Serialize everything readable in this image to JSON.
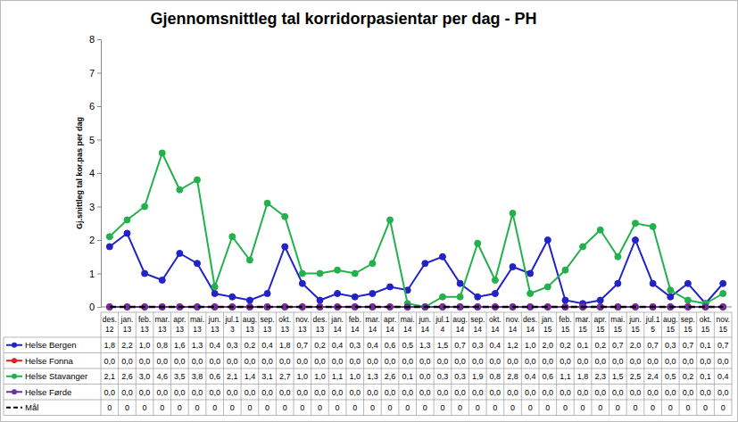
{
  "chart_data": {
    "type": "line",
    "title": "Gjennomsnittleg tal korridorpasientar per dag - PH",
    "y_label": "Gj.snittleg tal kor.pas per dag",
    "categories": [
      "des. 12",
      "jan. 13",
      "feb. 13",
      "mar. 13",
      "apr. 13",
      "mai. 13",
      "jun. 13",
      "jul.13",
      "aug. 13",
      "sep. 13",
      "okt. 13",
      "nov. 13",
      "des. 13",
      "jan. 14",
      "feb. 14",
      "mar. 14",
      "apr. 14",
      "mai. 14",
      "jun. 14",
      "jul.14",
      "aug. 14",
      "sep. 14",
      "okt. 14",
      "nov. 14",
      "des. 14",
      "jan. 15",
      "feb. 15",
      "mar. 15",
      "apr. 15",
      "mai. 15",
      "jun. 15",
      "jul.15",
      "aug. 15",
      "sep. 15",
      "okt. 15",
      "nov. 15"
    ],
    "ylim": [
      0,
      8
    ],
    "yticks": [
      0,
      1,
      2,
      3,
      4,
      5,
      6,
      7,
      8
    ],
    "grid": false,
    "series": [
      {
        "name": "Helse Bergen",
        "color": "#2222c8",
        "marker": "circle",
        "line_style": "solid",
        "values": [
          1.8,
          2.2,
          1.0,
          0.8,
          1.6,
          1.3,
          0.4,
          0.3,
          0.2,
          0.4,
          1.8,
          0.7,
          0.2,
          0.4,
          0.3,
          0.4,
          0.6,
          0.5,
          1.3,
          1.5,
          0.7,
          0.3,
          0.4,
          1.2,
          1.0,
          2.0,
          0.2,
          0.1,
          0.2,
          0.7,
          2.0,
          0.7,
          0.3,
          0.7,
          0.1,
          0.7
        ],
        "value_labels": [
          "1,8",
          "2,2",
          "1,0",
          "0,8",
          "1,6",
          "1,3",
          "0,4",
          "0,3",
          "0,2",
          "0,4",
          "1,8",
          "0,7",
          "0,2",
          "0,4",
          "0,3",
          "0,4",
          "0,6",
          "0,5",
          "1,3",
          "1,5",
          "0,7",
          "0,3",
          "0,4",
          "1,2",
          "1,0",
          "2,0",
          "0,2",
          "0,1",
          "0,2",
          "0,7",
          "2,0",
          "0,7",
          "0,3",
          "0,7",
          "0,1",
          "0,7"
        ]
      },
      {
        "name": "Helse Fonna",
        "color": "#e02020",
        "marker": "circle",
        "line_style": "solid",
        "values": [
          0,
          0,
          0,
          0,
          0,
          0,
          0,
          0,
          0,
          0,
          0,
          0,
          0,
          0,
          0,
          0,
          0,
          0,
          0,
          0,
          0,
          0,
          0,
          0,
          0,
          0,
          0,
          0,
          0,
          0,
          0,
          0,
          0,
          0,
          0,
          0
        ],
        "value_labels": [
          "0,0",
          "0,0",
          "0,0",
          "0,0",
          "0,0",
          "0,0",
          "0,0",
          "0,0",
          "0,0",
          "0,0",
          "0,0",
          "0,0",
          "0,0",
          "0,0",
          "0,0",
          "0,0",
          "0,0",
          "0,0",
          "0,0",
          "0,0",
          "0,0",
          "0,0",
          "0,0",
          "0,0",
          "0,0",
          "0,0",
          "0,0",
          "0,0",
          "0,0",
          "0,0",
          "0,0",
          "0,0",
          "0,0",
          "0,0",
          "0,0",
          "0,0"
        ]
      },
      {
        "name": "Helse Stavanger",
        "color": "#22b14c",
        "marker": "circle",
        "line_style": "solid",
        "values": [
          2.1,
          2.6,
          3.0,
          4.6,
          3.5,
          3.8,
          0.6,
          2.1,
          1.4,
          3.1,
          2.7,
          1.0,
          1.0,
          1.1,
          1.0,
          1.3,
          2.6,
          0.1,
          0.0,
          0.3,
          0.3,
          1.9,
          0.8,
          2.8,
          0.4,
          0.6,
          1.1,
          1.8,
          2.3,
          1.5,
          2.5,
          2.4,
          0.5,
          0.2,
          0.1,
          0.4
        ],
        "value_labels": [
          "2,1",
          "2,6",
          "3,0",
          "4,6",
          "3,5",
          "3,8",
          "0,6",
          "2,1",
          "1,4",
          "3,1",
          "2,7",
          "1,0",
          "1,0",
          "1,1",
          "1,0",
          "1,3",
          "2,6",
          "0,1",
          "0,0",
          "0,3",
          "0,3",
          "1,9",
          "0,8",
          "2,8",
          "0,4",
          "0,6",
          "1,1",
          "1,8",
          "2,3",
          "1,5",
          "2,5",
          "2,4",
          "0,5",
          "0,2",
          "0,1",
          "0,4"
        ]
      },
      {
        "name": "Helse Førde",
        "color": "#7030a0",
        "marker": "circle",
        "line_style": "solid",
        "values": [
          0,
          0,
          0,
          0,
          0,
          0,
          0,
          0,
          0,
          0,
          0,
          0,
          0,
          0,
          0,
          0,
          0,
          0,
          0,
          0,
          0,
          0,
          0,
          0,
          0,
          0,
          0,
          0,
          0,
          0,
          0,
          0,
          0,
          0,
          0,
          0
        ],
        "value_labels": [
          "0,0",
          "0,0",
          "0,0",
          "0,0",
          "0,0",
          "0,0",
          "0,0",
          "0,0",
          "0,0",
          "0,0",
          "0,0",
          "0,0",
          "0,0",
          "0,0",
          "0,0",
          "0,0",
          "0,0",
          "0,0",
          "0,0",
          "0,0",
          "0,0",
          "0,0",
          "0,0",
          "0,0",
          "0,0",
          "0,0",
          "0,0",
          "0,0",
          "0,0",
          "0,0",
          "0,0",
          "0,0",
          "0,0",
          "0,0",
          "0,0",
          "0,0"
        ]
      },
      {
        "name": "Mål",
        "color": "#000000",
        "marker": "none",
        "line_style": "dashed",
        "values": [
          0,
          0,
          0,
          0,
          0,
          0,
          0,
          0,
          0,
          0,
          0,
          0,
          0,
          0,
          0,
          0,
          0,
          0,
          0,
          0,
          0,
          0,
          0,
          0,
          0,
          0,
          0,
          0,
          0,
          0,
          0,
          0,
          0,
          0,
          0,
          0
        ]
      }
    ]
  }
}
